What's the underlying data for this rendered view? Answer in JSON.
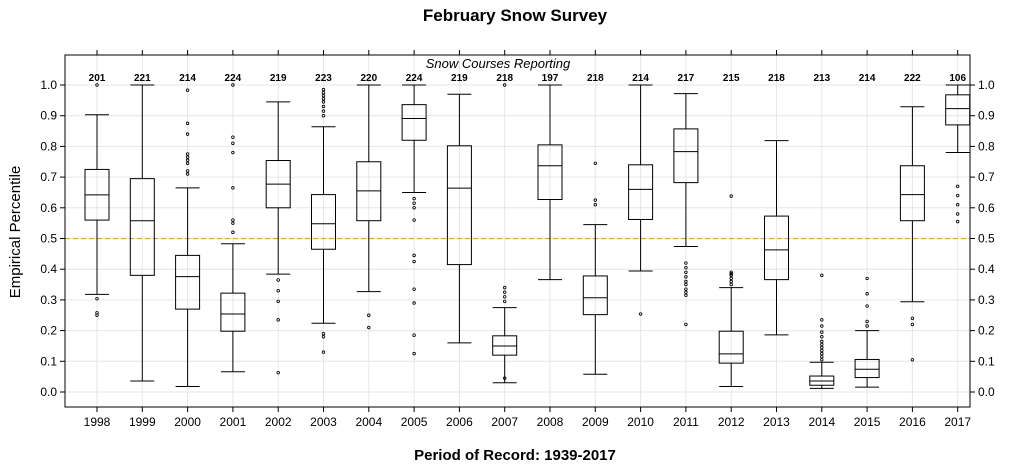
{
  "chart_data": {
    "type": "boxplot",
    "title": "February Snow Survey",
    "xlabel": "Period of Record: 1939-2017",
    "ylabel": "Empirical Percentile",
    "strip_label": "Snow Courses Reporting",
    "ylim": [
      -0.05,
      1.07
    ],
    "yticks": [
      0.0,
      0.1,
      0.2,
      0.3,
      0.4,
      0.5,
      0.6,
      0.7,
      0.8,
      0.9,
      1.0
    ],
    "ytick_labels": [
      "0.0",
      "0.1",
      "0.2",
      "0.3",
      "0.4",
      "0.5",
      "0.6",
      "0.7",
      "0.8",
      "0.9",
      "1.0"
    ],
    "reference_line": {
      "y": 0.5,
      "color": "#e8a33d",
      "style": "dashed"
    },
    "grid": true,
    "categories": [
      "1998",
      "1999",
      "2000",
      "2001",
      "2002",
      "2003",
      "2004",
      "2005",
      "2006",
      "2007",
      "2008",
      "2009",
      "2010",
      "2011",
      "2012",
      "2013",
      "2014",
      "2015",
      "2016",
      "2017"
    ],
    "counts": [
      "201",
      "221",
      "214",
      "224",
      "219",
      "223",
      "220",
      "224",
      "219",
      "218",
      "197",
      "218",
      "214",
      "217",
      "215",
      "218",
      "213",
      "214",
      "222",
      "106"
    ],
    "boxes": [
      {
        "whisker_low": 0.318,
        "q1": 0.56,
        "median": 0.642,
        "q3": 0.725,
        "whisker_high": 0.903,
        "outliers": [
          0.304,
          0.258,
          0.25,
          1.0
        ]
      },
      {
        "whisker_low": 0.036,
        "q1": 0.38,
        "median": 0.558,
        "q3": 0.695,
        "whisker_high": 1.0,
        "outliers": []
      },
      {
        "whisker_low": 0.018,
        "q1": 0.27,
        "median": 0.376,
        "q3": 0.445,
        "whisker_high": 0.665,
        "outliers": [
          0.983,
          0.875,
          0.84,
          0.775,
          0.765,
          0.755,
          0.745,
          0.72,
          0.71
        ]
      },
      {
        "whisker_low": 0.066,
        "q1": 0.198,
        "median": 0.254,
        "q3": 0.322,
        "whisker_high": 0.483,
        "outliers": [
          1.0,
          0.83,
          0.81,
          0.78,
          0.665,
          0.56,
          0.55,
          0.52
        ]
      },
      {
        "whisker_low": 0.384,
        "q1": 0.6,
        "median": 0.677,
        "q3": 0.754,
        "whisker_high": 0.945,
        "outliers": [
          0.365,
          0.33,
          0.295,
          0.235,
          0.063
        ]
      },
      {
        "whisker_low": 0.224,
        "q1": 0.465,
        "median": 0.548,
        "q3": 0.643,
        "whisker_high": 0.864,
        "outliers": [
          0.985,
          0.975,
          0.965,
          0.955,
          0.945,
          0.93,
          0.915,
          0.9,
          0.19,
          0.18,
          0.13
        ]
      },
      {
        "whisker_low": 0.327,
        "q1": 0.558,
        "median": 0.655,
        "q3": 0.75,
        "whisker_high": 1.0,
        "outliers": [
          0.25,
          0.21
        ]
      },
      {
        "whisker_low": 0.65,
        "q1": 0.82,
        "median": 0.891,
        "q3": 0.936,
        "whisker_high": 1.0,
        "outliers": [
          0.63,
          0.615,
          0.6,
          0.56,
          0.445,
          0.425,
          0.335,
          0.29,
          0.185,
          0.125
        ]
      },
      {
        "whisker_low": 0.16,
        "q1": 0.415,
        "median": 0.664,
        "q3": 0.802,
        "whisker_high": 0.97,
        "outliers": []
      },
      {
        "whisker_low": 0.03,
        "q1": 0.12,
        "median": 0.15,
        "q3": 0.183,
        "whisker_high": 0.275,
        "outliers": [
          1.0,
          0.34,
          0.325,
          0.31,
          0.295,
          0.045
        ]
      },
      {
        "whisker_low": 0.366,
        "q1": 0.627,
        "median": 0.737,
        "q3": 0.805,
        "whisker_high": 1.0,
        "outliers": []
      },
      {
        "whisker_low": 0.058,
        "q1": 0.252,
        "median": 0.307,
        "q3": 0.378,
        "whisker_high": 0.545,
        "outliers": [
          0.745,
          0.625,
          0.61
        ]
      },
      {
        "whisker_low": 0.394,
        "q1": 0.562,
        "median": 0.66,
        "q3": 0.74,
        "whisker_high": 1.0,
        "outliers": [
          0.254
        ]
      },
      {
        "whisker_low": 0.474,
        "q1": 0.682,
        "median": 0.783,
        "q3": 0.857,
        "whisker_high": 0.972,
        "outliers": [
          0.42,
          0.405,
          0.39,
          0.375,
          0.36,
          0.35,
          0.335,
          0.325,
          0.315,
          0.22
        ]
      },
      {
        "whisker_low": 0.018,
        "q1": 0.094,
        "median": 0.124,
        "q3": 0.198,
        "whisker_high": 0.34,
        "outliers": [
          0.638,
          0.39,
          0.385,
          0.38,
          0.37,
          0.36,
          0.35
        ]
      },
      {
        "whisker_low": 0.186,
        "q1": 0.366,
        "median": 0.463,
        "q3": 0.573,
        "whisker_high": 0.819,
        "outliers": []
      },
      {
        "whisker_low": 0.012,
        "q1": 0.022,
        "median": 0.036,
        "q3": 0.052,
        "whisker_high": 0.097,
        "outliers": [
          0.38,
          0.235,
          0.215,
          0.195,
          0.18,
          0.165,
          0.155,
          0.145,
          0.135,
          0.125,
          0.115,
          0.105
        ]
      },
      {
        "whisker_low": 0.016,
        "q1": 0.047,
        "median": 0.074,
        "q3": 0.106,
        "whisker_high": 0.2,
        "outliers": [
          0.37,
          0.32,
          0.28,
          0.23,
          0.215
        ]
      },
      {
        "whisker_low": 0.294,
        "q1": 0.558,
        "median": 0.643,
        "q3": 0.737,
        "whisker_high": 0.929,
        "outliers": [
          0.24,
          0.22,
          0.105
        ]
      },
      {
        "whisker_low": 0.78,
        "q1": 0.87,
        "median": 0.923,
        "q3": 0.968,
        "whisker_high": 1.0,
        "outliers": [
          0.67,
          0.64,
          0.61,
          0.58,
          0.555
        ]
      }
    ]
  },
  "colors": {
    "box": "#000000",
    "grid": "#e6e6e6",
    "reference": "#e8a33d",
    "frame": "#000000"
  }
}
